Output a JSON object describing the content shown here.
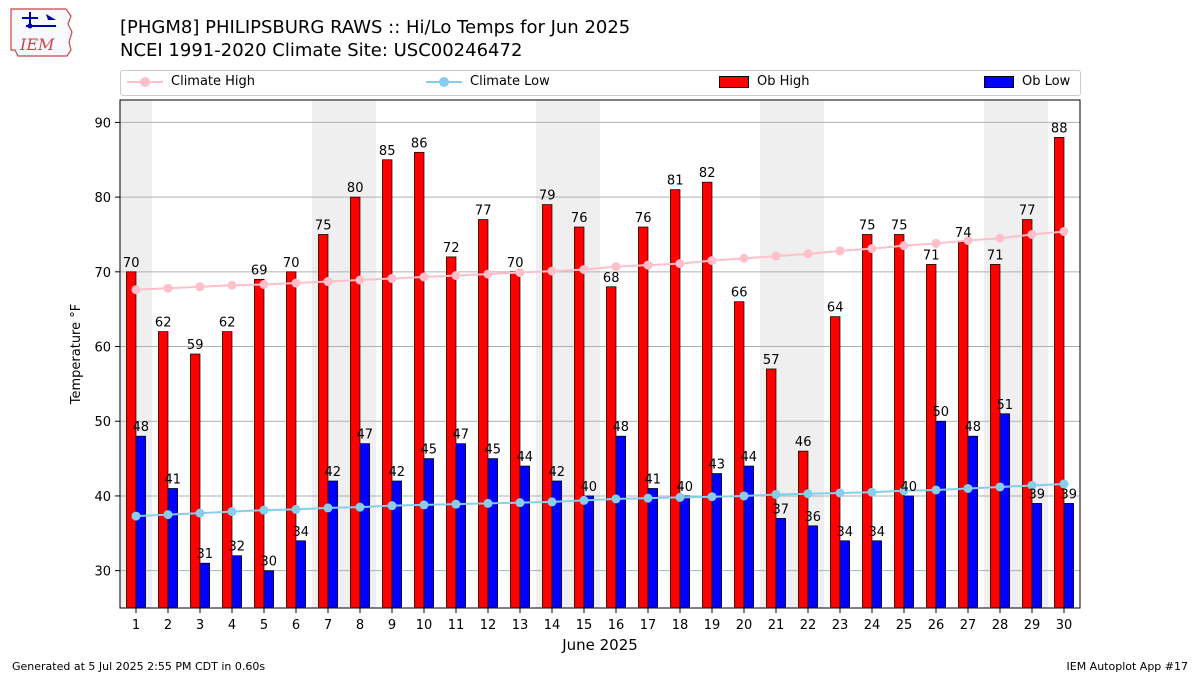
{
  "logo": {
    "text": "IEM",
    "icon": "iowa-map-weather-station-icon"
  },
  "title_line1": "[PHGM8] PHILIPSBURG RAWS :: Hi/Lo Temps for Jun 2025",
  "title_line2": "NCEI 1991-2020 Climate Site: USC00246472",
  "footer": {
    "left": "Generated at 5 Jul 2025 2:55 PM CDT in 0.60s",
    "right": "IEM Autoplot App #17"
  },
  "colors": {
    "climate_high": "#ffc0cb",
    "climate_low": "#87ceeb",
    "ob_high": "#ff0000",
    "ob_low": "#0000ff",
    "weekend_band": "#efefef",
    "grid": "#b0b0b0"
  },
  "chart_data": {
    "type": "bar",
    "xlabel": "June 2025",
    "ylabel": "Temperature °F",
    "ylim": [
      25,
      93
    ],
    "yticks": [
      30,
      40,
      50,
      60,
      70,
      80,
      90
    ],
    "grid": "horizontal",
    "legend_position": "top",
    "categories": [
      "1",
      "2",
      "3",
      "4",
      "5",
      "6",
      "7",
      "8",
      "9",
      "10",
      "11",
      "12",
      "13",
      "14",
      "15",
      "16",
      "17",
      "18",
      "19",
      "20",
      "21",
      "22",
      "23",
      "24",
      "25",
      "26",
      "27",
      "28",
      "29",
      "30"
    ],
    "shaded_days": [
      1,
      7,
      8,
      14,
      15,
      21,
      22,
      28,
      29
    ],
    "series": [
      {
        "name": "Ob High",
        "kind": "bar",
        "values": [
          70,
          62,
          59,
          62,
          69,
          70,
          75,
          80,
          85,
          86,
          72,
          77,
          70,
          79,
          76,
          68,
          76,
          81,
          82,
          66,
          57,
          46,
          64,
          75,
          75,
          71,
          74,
          71,
          77,
          88
        ]
      },
      {
        "name": "Ob Low",
        "kind": "bar",
        "values": [
          48,
          41,
          31,
          32,
          30,
          34,
          42,
          47,
          42,
          45,
          47,
          45,
          44,
          42,
          40,
          48,
          41,
          40,
          43,
          44,
          37,
          36,
          34,
          34,
          40,
          50,
          48,
          51,
          39,
          39
        ]
      },
      {
        "name": "Climate High",
        "kind": "line",
        "values": [
          67.6,
          67.8,
          68.0,
          68.2,
          68.3,
          68.5,
          68.7,
          68.9,
          69.1,
          69.3,
          69.5,
          69.7,
          69.9,
          70.1,
          70.3,
          70.7,
          70.9,
          71.1,
          71.5,
          71.8,
          72.1,
          72.4,
          72.8,
          73.1,
          73.5,
          73.8,
          74.2,
          74.5,
          75.0,
          75.4
        ]
      },
      {
        "name": "Climate Low",
        "kind": "line",
        "values": [
          37.3,
          37.5,
          37.7,
          37.9,
          38.1,
          38.2,
          38.4,
          38.5,
          38.7,
          38.8,
          38.9,
          39.0,
          39.1,
          39.2,
          39.4,
          39.6,
          39.7,
          39.8,
          39.9,
          40.0,
          40.2,
          40.3,
          40.4,
          40.5,
          40.7,
          40.8,
          41.0,
          41.2,
          41.4,
          41.6
        ]
      }
    ]
  }
}
